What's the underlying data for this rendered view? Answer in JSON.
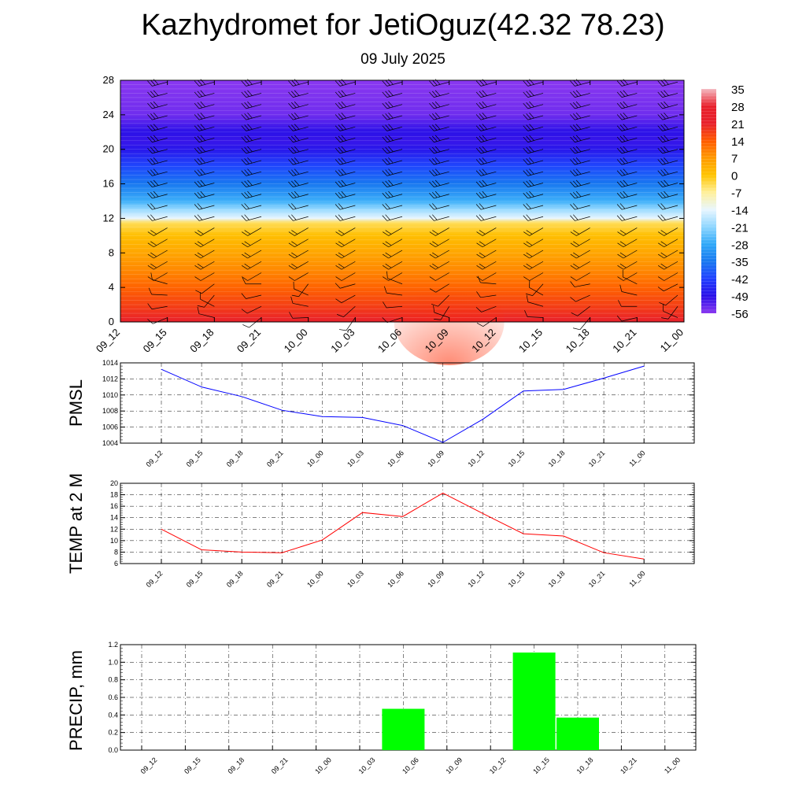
{
  "title": "Kazhydromet for JetiOguz(42.32 78.23)",
  "subtitle": "09 July 2025",
  "time_labels": [
    "09_12",
    "09_15",
    "09_18",
    "09_21",
    "10_00",
    "10_03",
    "10_06",
    "10_09",
    "10_12",
    "10_15",
    "10_18",
    "10_21",
    "11_00"
  ],
  "colors": {
    "pmsl_line": "#0000ff",
    "temp_line": "#ff0000",
    "precip_bar": "#00ff00",
    "grid": "#000000"
  },
  "chart_data": [
    {
      "type": "heatmap",
      "description_of_marks": "temperature shading by height with wind barbs",
      "x": [
        "09_12",
        "09_15",
        "09_18",
        "09_21",
        "10_00",
        "10_03",
        "10_06",
        "10_09",
        "10_12",
        "10_15",
        "10_18",
        "10_21",
        "11_00"
      ],
      "yticks": [
        0,
        4,
        8,
        12,
        16,
        20,
        24,
        28
      ],
      "ylim": [
        0,
        28
      ],
      "colorbar": {
        "ticks": [
          35,
          28,
          21,
          14,
          7,
          0,
          -7,
          -14,
          -21,
          -28,
          -35,
          -42,
          -49,
          -56
        ],
        "stops": [
          {
            "v": 35,
            "color": "#f4b8c0"
          },
          {
            "v": 28,
            "color": "#e8202c"
          },
          {
            "v": 21,
            "color": "#e8202c"
          },
          {
            "v": 14,
            "color": "#ff5a00"
          },
          {
            "v": 7,
            "color": "#ff9a00"
          },
          {
            "v": 0,
            "color": "#ffc400"
          },
          {
            "v": -7,
            "color": "#fff09a"
          },
          {
            "v": -14,
            "color": "#e8f6ff"
          },
          {
            "v": -21,
            "color": "#8ed6ff"
          },
          {
            "v": -28,
            "color": "#30a8f8"
          },
          {
            "v": -35,
            "color": "#1878f0"
          },
          {
            "v": -42,
            "color": "#2040ff"
          },
          {
            "v": -49,
            "color": "#2a10e8"
          },
          {
            "v": -56,
            "color": "#8a38f0"
          }
        ]
      },
      "temperature_profile": [
        {
          "h": 0,
          "t": 22
        },
        {
          "h": 2,
          "t": 17
        },
        {
          "h": 4,
          "t": 13
        },
        {
          "h": 6,
          "t": 9
        },
        {
          "h": 8,
          "t": 5
        },
        {
          "h": 10,
          "t": 1
        },
        {
          "h": 11.5,
          "t": -4
        },
        {
          "h": 12,
          "t": -14
        },
        {
          "h": 13,
          "t": -20
        },
        {
          "h": 14,
          "t": -27
        },
        {
          "h": 16,
          "t": -35
        },
        {
          "h": 18,
          "t": -41
        },
        {
          "h": 20,
          "t": -48
        },
        {
          "h": 21,
          "t": -50
        },
        {
          "h": 22,
          "t": -49
        },
        {
          "h": 24,
          "t": -54
        },
        {
          "h": 28,
          "t": -56
        }
      ]
    },
    {
      "type": "line",
      "x": [
        "09_12",
        "09_15",
        "09_18",
        "09_21",
        "10_00",
        "10_03",
        "10_06",
        "10_09",
        "10_12",
        "10_15",
        "10_18",
        "10_21",
        "11_00"
      ],
      "ylabel": "PMSL",
      "ylim": [
        1004,
        1014
      ],
      "yticks": [
        1004,
        1006,
        1008,
        1010,
        1012,
        1014
      ],
      "series": [
        {
          "values": [
            1013.2,
            1011.0,
            1009.8,
            1008.1,
            1007.3,
            1007.2,
            1006.2,
            1004.1,
            1007.0,
            1010.5,
            1010.7,
            1012.1,
            1013.6
          ]
        }
      ],
      "grid": true
    },
    {
      "type": "line",
      "x": [
        "09_12",
        "09_15",
        "09_18",
        "09_21",
        "10_00",
        "10_03",
        "10_06",
        "10_09",
        "10_12",
        "10_15",
        "10_18",
        "10_21",
        "11_00"
      ],
      "ylabel": "TEMP at 2 M",
      "ylim": [
        6,
        20
      ],
      "yticks": [
        6,
        8,
        10,
        12,
        14,
        16,
        18,
        20
      ],
      "series": [
        {
          "values": [
            12.0,
            8.4,
            8.0,
            7.9,
            10.1,
            14.9,
            14.2,
            18.3,
            14.7,
            11.2,
            10.8,
            7.9,
            6.8
          ]
        }
      ],
      "grid": true
    },
    {
      "type": "bar",
      "categories": [
        "09_12",
        "09_15",
        "09_18",
        "09_21",
        "10_00",
        "10_03",
        "10_06",
        "10_09",
        "10_12",
        "10_15",
        "10_18",
        "10_21",
        "11_00"
      ],
      "values": [
        0,
        0,
        0,
        0,
        0,
        0,
        0.47,
        0,
        0,
        1.11,
        0.37,
        0,
        0
      ],
      "ylabel": "PRECIP, mm",
      "ylim": [
        0,
        1.2
      ],
      "yticks": [
        "0.0",
        "0.2",
        "0.4",
        "0.6",
        "0.8",
        "1.0",
        "1.2"
      ],
      "grid": true
    }
  ]
}
